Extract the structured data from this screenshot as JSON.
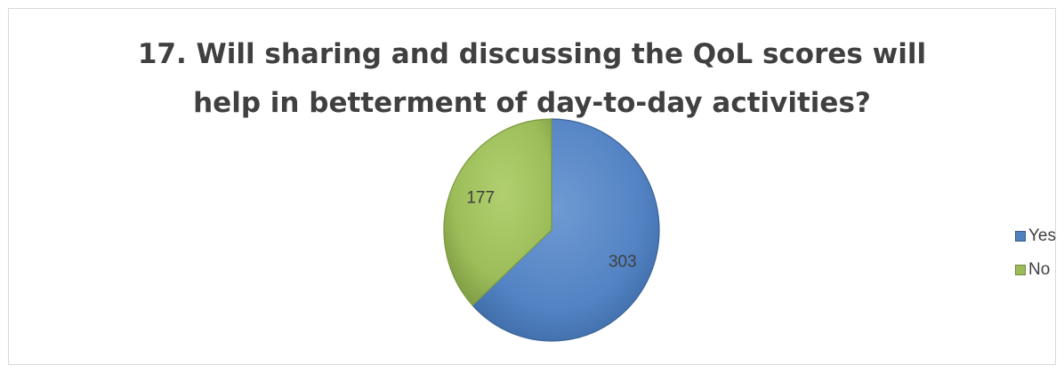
{
  "chart_data": {
    "type": "pie",
    "title": "17. Will sharing and discussing the QoL scores will help in betterment of day-to-day activities?",
    "title_lines": [
      "17. Will sharing and discussing the QoL scores will",
      "help in betterment of day-to-day activities?"
    ],
    "categories": [
      "Yes",
      "No"
    ],
    "values": [
      303,
      177
    ],
    "colors": [
      "#4f81bd",
      "#9bbb59"
    ],
    "legend_position": "right"
  }
}
